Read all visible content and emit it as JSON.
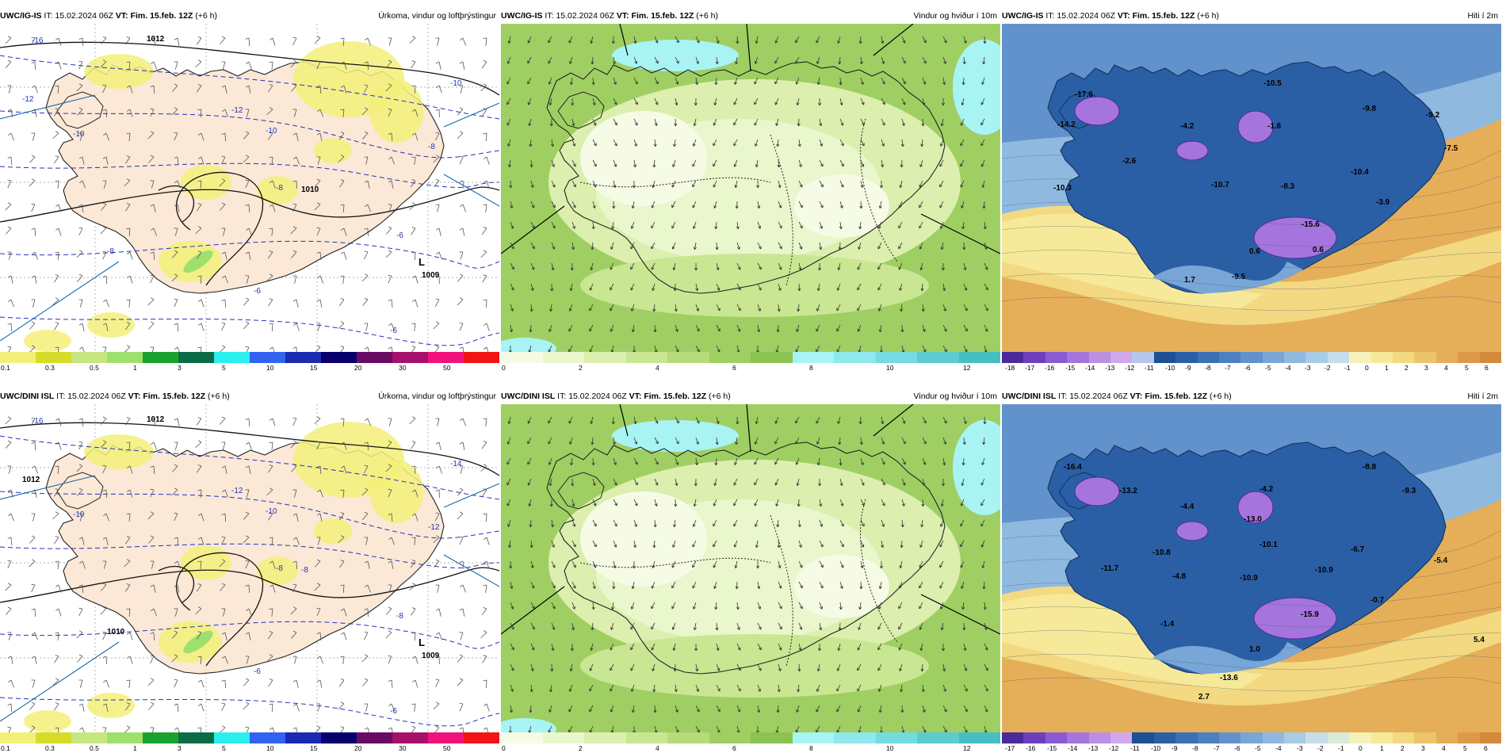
{
  "panels": [
    {
      "row": 0,
      "col": 0,
      "model": "UWC/IG-IS",
      "it_label": "IT:",
      "it_value": "15.02.2024 06Z",
      "vt_text": "VT: Fim. 15.feb. 12Z",
      "offset": "(+6 h)",
      "title": "Úrkoma, vindur og loftþrýstingur",
      "kind": "precip",
      "map_labels": [
        {
          "t": "-16"
        },
        {
          "t": "1012"
        },
        {
          "t": "-12"
        },
        {
          "t": "-10"
        },
        {
          "t": "-12"
        },
        {
          "t": "-10"
        },
        {
          "t": "-10"
        },
        {
          "t": "-8"
        },
        {
          "t": "-8"
        },
        {
          "t": "1010"
        },
        {
          "t": "-6"
        },
        {
          "t": "-8"
        },
        {
          "t": "-6"
        },
        {
          "t": "L"
        },
        {
          "t": "1009"
        },
        {
          "t": "-6"
        }
      ],
      "colorbar": {
        "colors": [
          "#f3f07a",
          "#d6dc28",
          "#c6e680",
          "#9ee06e",
          "#1aa22e",
          "#0b6b46",
          "#29f0ee",
          "#3262f0",
          "#1c2ab0",
          "#07006c",
          "#6a0a64",
          "#a6106c",
          "#f0127a",
          "#f01414"
        ],
        "ticks": [
          "0.1",
          "0.3",
          "0.5",
          "1",
          "3",
          "5",
          "10",
          "15",
          "20",
          "30",
          "50"
        ]
      }
    },
    {
      "row": 0,
      "col": 1,
      "model": "UWC/IG-IS",
      "it_label": "IT:",
      "it_value": "15.02.2024 06Z",
      "vt_text": "VT: Fim. 15.feb. 12Z",
      "offset": "(+6 h)",
      "title": "Vindur og hviður í 10m",
      "kind": "wind",
      "map_labels": [],
      "colorbar": {
        "colors": [
          "#f6fbe6",
          "#eaf6cc",
          "#dcefae",
          "#c9e692",
          "#b5db7a",
          "#9fcf62",
          "#8cc350",
          "#a8f4f4",
          "#8ee8ec",
          "#74dbe0",
          "#5ccccf",
          "#46bfc2"
        ],
        "ticks": [
          "0",
          "2",
          "4",
          "6",
          "8",
          "10",
          "12"
        ]
      }
    },
    {
      "row": 0,
      "col": 2,
      "model": "UWC/IG-IS",
      "it_label": "IT:",
      "it_value": "15.02.2024 06Z",
      "vt_text": "VT: Fim. 15.feb. 12Z",
      "offset": "(+6 h)",
      "title": "Hiti í 2m",
      "kind": "temp",
      "map_labels": [
        {
          "t": "-17.6"
        },
        {
          "t": "-10.5"
        },
        {
          "t": "-9.8"
        },
        {
          "t": "-14.2"
        },
        {
          "t": "-4.2"
        },
        {
          "t": "-1.6"
        },
        {
          "t": "-9.2"
        },
        {
          "t": "-7.5"
        },
        {
          "t": "-2.6"
        },
        {
          "t": "-10.4"
        },
        {
          "t": "-10.3"
        },
        {
          "t": "-10.7"
        },
        {
          "t": "-8.3"
        },
        {
          "t": "-3.9"
        },
        {
          "t": "-15.6"
        },
        {
          "t": "0.6"
        },
        {
          "t": "1.7"
        },
        {
          "t": "-9.5"
        },
        {
          "t": "0.6"
        }
      ],
      "colorbar": {
        "colors": [
          "#4a2a9a",
          "#6c3fbf",
          "#8a5ad2",
          "#a574dc",
          "#bb8fe4",
          "#cfa9ec",
          "#b7c6ec",
          "#1c4f96",
          "#2a5fa6",
          "#3a70b4",
          "#4d80c0",
          "#6292cc",
          "#78a6d6",
          "#8fb9df",
          "#a8cbe6",
          "#c6ddea",
          "#f4f2b8",
          "#f6ea9a",
          "#f2d982",
          "#edc46c",
          "#e5ae58",
          "#dc9a48",
          "#d38a3c"
        ],
        "ticks": [
          "-18",
          "-17",
          "-16",
          "-15",
          "-14",
          "-13",
          "-12",
          "-11",
          "-10",
          "-9",
          "-8",
          "-7",
          "-6",
          "-5",
          "-4",
          "-3",
          "-2",
          "-1",
          "0",
          "1",
          "2",
          "3",
          "4",
          "5",
          "6"
        ]
      }
    },
    {
      "row": 1,
      "col": 0,
      "model": "UWC/DINI ISL",
      "it_label": "IT:",
      "it_value": "15.02.2024 06Z",
      "vt_text": "VT: Fim. 15.feb. 12Z",
      "offset": "(+6 h)",
      "title": "Úrkoma, vindur og loftþrýstingur",
      "kind": "precip",
      "map_labels": [
        {
          "t": "-16"
        },
        {
          "t": "1012"
        },
        {
          "t": "1012"
        },
        {
          "t": "-14"
        },
        {
          "t": "-12"
        },
        {
          "t": "-10"
        },
        {
          "t": "-10"
        },
        {
          "t": "-12"
        },
        {
          "t": "-8"
        },
        {
          "t": "-8"
        },
        {
          "t": "-8"
        },
        {
          "t": "1010"
        },
        {
          "t": "-6"
        },
        {
          "t": "L"
        },
        {
          "t": "1009"
        },
        {
          "t": "-6"
        }
      ],
      "colorbar": {
        "colors": [
          "#f3f07a",
          "#d6dc28",
          "#c6e680",
          "#9ee06e",
          "#1aa22e",
          "#0b6b46",
          "#29f0ee",
          "#3262f0",
          "#1c2ab0",
          "#07006c",
          "#6a0a64",
          "#a6106c",
          "#f0127a",
          "#f01414"
        ],
        "ticks": [
          "0.1",
          "0.3",
          "0.5",
          "1",
          "3",
          "5",
          "10",
          "15",
          "20",
          "30",
          "50"
        ]
      }
    },
    {
      "row": 1,
      "col": 1,
      "model": "UWC/DINI ISL",
      "it_label": "IT:",
      "it_value": "15.02.2024 06Z",
      "vt_text": "VT: Fim. 15.feb. 12Z",
      "offset": "(+6 h)",
      "title": "Vindur og hviður í 10m",
      "kind": "wind",
      "map_labels": [],
      "colorbar": {
        "colors": [
          "#f6fbe6",
          "#eaf6cc",
          "#dcefae",
          "#c9e692",
          "#b5db7a",
          "#9fcf62",
          "#8cc350",
          "#a8f4f4",
          "#8ee8ec",
          "#74dbe0",
          "#5ccccf",
          "#46bfc2"
        ],
        "ticks": [
          "0",
          "2",
          "4",
          "6",
          "8",
          "10",
          "12"
        ]
      }
    },
    {
      "row": 1,
      "col": 2,
      "model": "UWC/DINI ISL",
      "it_label": "IT:",
      "it_value": "15.02.2024 06Z",
      "vt_text": "VT: Fim. 15.feb. 12Z",
      "offset": "(+6 h)",
      "title": "Hiti í 2m",
      "kind": "temp",
      "map_labels": [
        {
          "t": "-16.4"
        },
        {
          "t": "-13.2"
        },
        {
          "t": "-8.8"
        },
        {
          "t": "-9.3"
        },
        {
          "t": "-4.2"
        },
        {
          "t": "-13.0"
        },
        {
          "t": "-4.4"
        },
        {
          "t": "-10.1"
        },
        {
          "t": "-10.8"
        },
        {
          "t": "-11.7"
        },
        {
          "t": "-4.8"
        },
        {
          "t": "-10.9"
        },
        {
          "t": "-10.9"
        },
        {
          "t": "-6.7"
        },
        {
          "t": "-5.4"
        },
        {
          "t": "-15.9"
        },
        {
          "t": "-0.7"
        },
        {
          "t": "-1.4"
        },
        {
          "t": "1.0"
        },
        {
          "t": "5.4"
        },
        {
          "t": "-13.6"
        },
        {
          "t": "2.7"
        }
      ],
      "colorbar": {
        "colors": [
          "#4a2a9a",
          "#6c3fbf",
          "#8a5ad2",
          "#a574dc",
          "#bb8fe4",
          "#cfa9ec",
          "#1c4f96",
          "#2a5fa6",
          "#3a70b4",
          "#4d80c0",
          "#6292cc",
          "#78a6d6",
          "#8fb9df",
          "#a8cbe6",
          "#c6ddea",
          "#d8ead8",
          "#f4f2b8",
          "#f6ea9a",
          "#f2d982",
          "#edc46c",
          "#e5ae58",
          "#dc9a48",
          "#d38a3c"
        ],
        "ticks": [
          "-17",
          "-16",
          "-15",
          "-14",
          "-13",
          "-12",
          "-11",
          "-10",
          "-9",
          "-8",
          "-7",
          "-6",
          "-5",
          "-4",
          "-3",
          "-2",
          "-1",
          "0",
          "1",
          "2",
          "3",
          "4",
          "5",
          "6"
        ]
      }
    }
  ]
}
